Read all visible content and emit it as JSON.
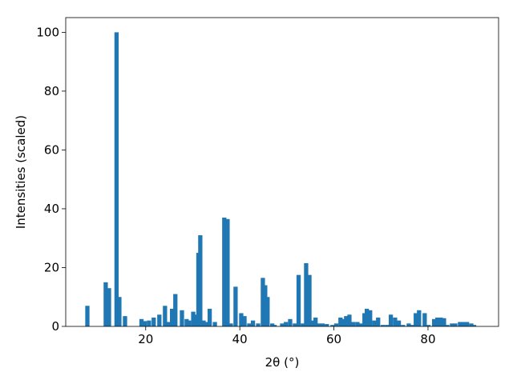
{
  "chart_data": {
    "type": "bar",
    "xlabel": "2θ (°)",
    "ylabel": "Intensities (scaled)",
    "color": "#1f77b4",
    "x": [
      7.6,
      11.5,
      12.2,
      13.8,
      14.4,
      15.6,
      19.1,
      19.8,
      20.7,
      21.7,
      22.9,
      24.1,
      24.8,
      25.6,
      26.3,
      27.7,
      28.7,
      29.2,
      30.1,
      30.7,
      31.2,
      31.6,
      32.3,
      32.9,
      33.6,
      34.7,
      36.7,
      37.4,
      38.1,
      39.1,
      40.3,
      41.0,
      42.0,
      42.8,
      43.9,
      44.9,
      45.4,
      45.9,
      46.9,
      47.4,
      49.0,
      49.8,
      50.7,
      51.7,
      52.5,
      53.4,
      54.1,
      54.8,
      55.6,
      56.1,
      56.8,
      57.6,
      58.5,
      59.7,
      60.5,
      61.4,
      62.1,
      62.6,
      63.3,
      64.1,
      65.0,
      65.7,
      66.5,
      67.0,
      67.7,
      68.6,
      69.4,
      70.4,
      71.3,
      72.1,
      73.0,
      73.8,
      74.7,
      75.9,
      76.7,
      77.4,
      78.1,
      79.3,
      80.1,
      81.3,
      82.0,
      82.7,
      83.4,
      84.1,
      85.1,
      85.8,
      86.8,
      87.5,
      88.3,
      89.2,
      89.8
    ],
    "values": [
      7,
      15,
      13,
      100,
      10,
      3.5,
      2.5,
      1.8,
      2,
      3,
      4,
      7,
      1.5,
      6,
      11,
      5.5,
      2.5,
      2,
      5,
      4,
      25,
      31,
      2,
      1.5,
      6,
      1.5,
      37,
      36.5,
      1,
      13.5,
      4.5,
      3.5,
      1,
      2,
      1,
      16.5,
      14,
      10,
      1,
      0.5,
      1,
      1.5,
      2.5,
      1,
      17.5,
      1,
      21.5,
      17.5,
      2,
      3,
      1,
      1,
      0.8,
      0.5,
      1,
      3,
      2.5,
      3.5,
      4,
      1.5,
      1.5,
      1,
      4.5,
      6,
      5.5,
      2,
      3,
      0.5,
      0.5,
      4,
      3,
      2,
      0.5,
      1,
      0.5,
      4.5,
      5.5,
      4.5,
      0.5,
      2.5,
      3,
      3,
      2.8,
      0.5,
      1,
      1,
      1.5,
      1.5,
      1.5,
      1,
      0.5
    ],
    "xlim": [
      3,
      95
    ],
    "ylim": [
      0,
      105
    ],
    "xticks": [
      20,
      40,
      60,
      80
    ],
    "yticks": [
      0,
      20,
      40,
      60,
      80,
      100
    ]
  }
}
